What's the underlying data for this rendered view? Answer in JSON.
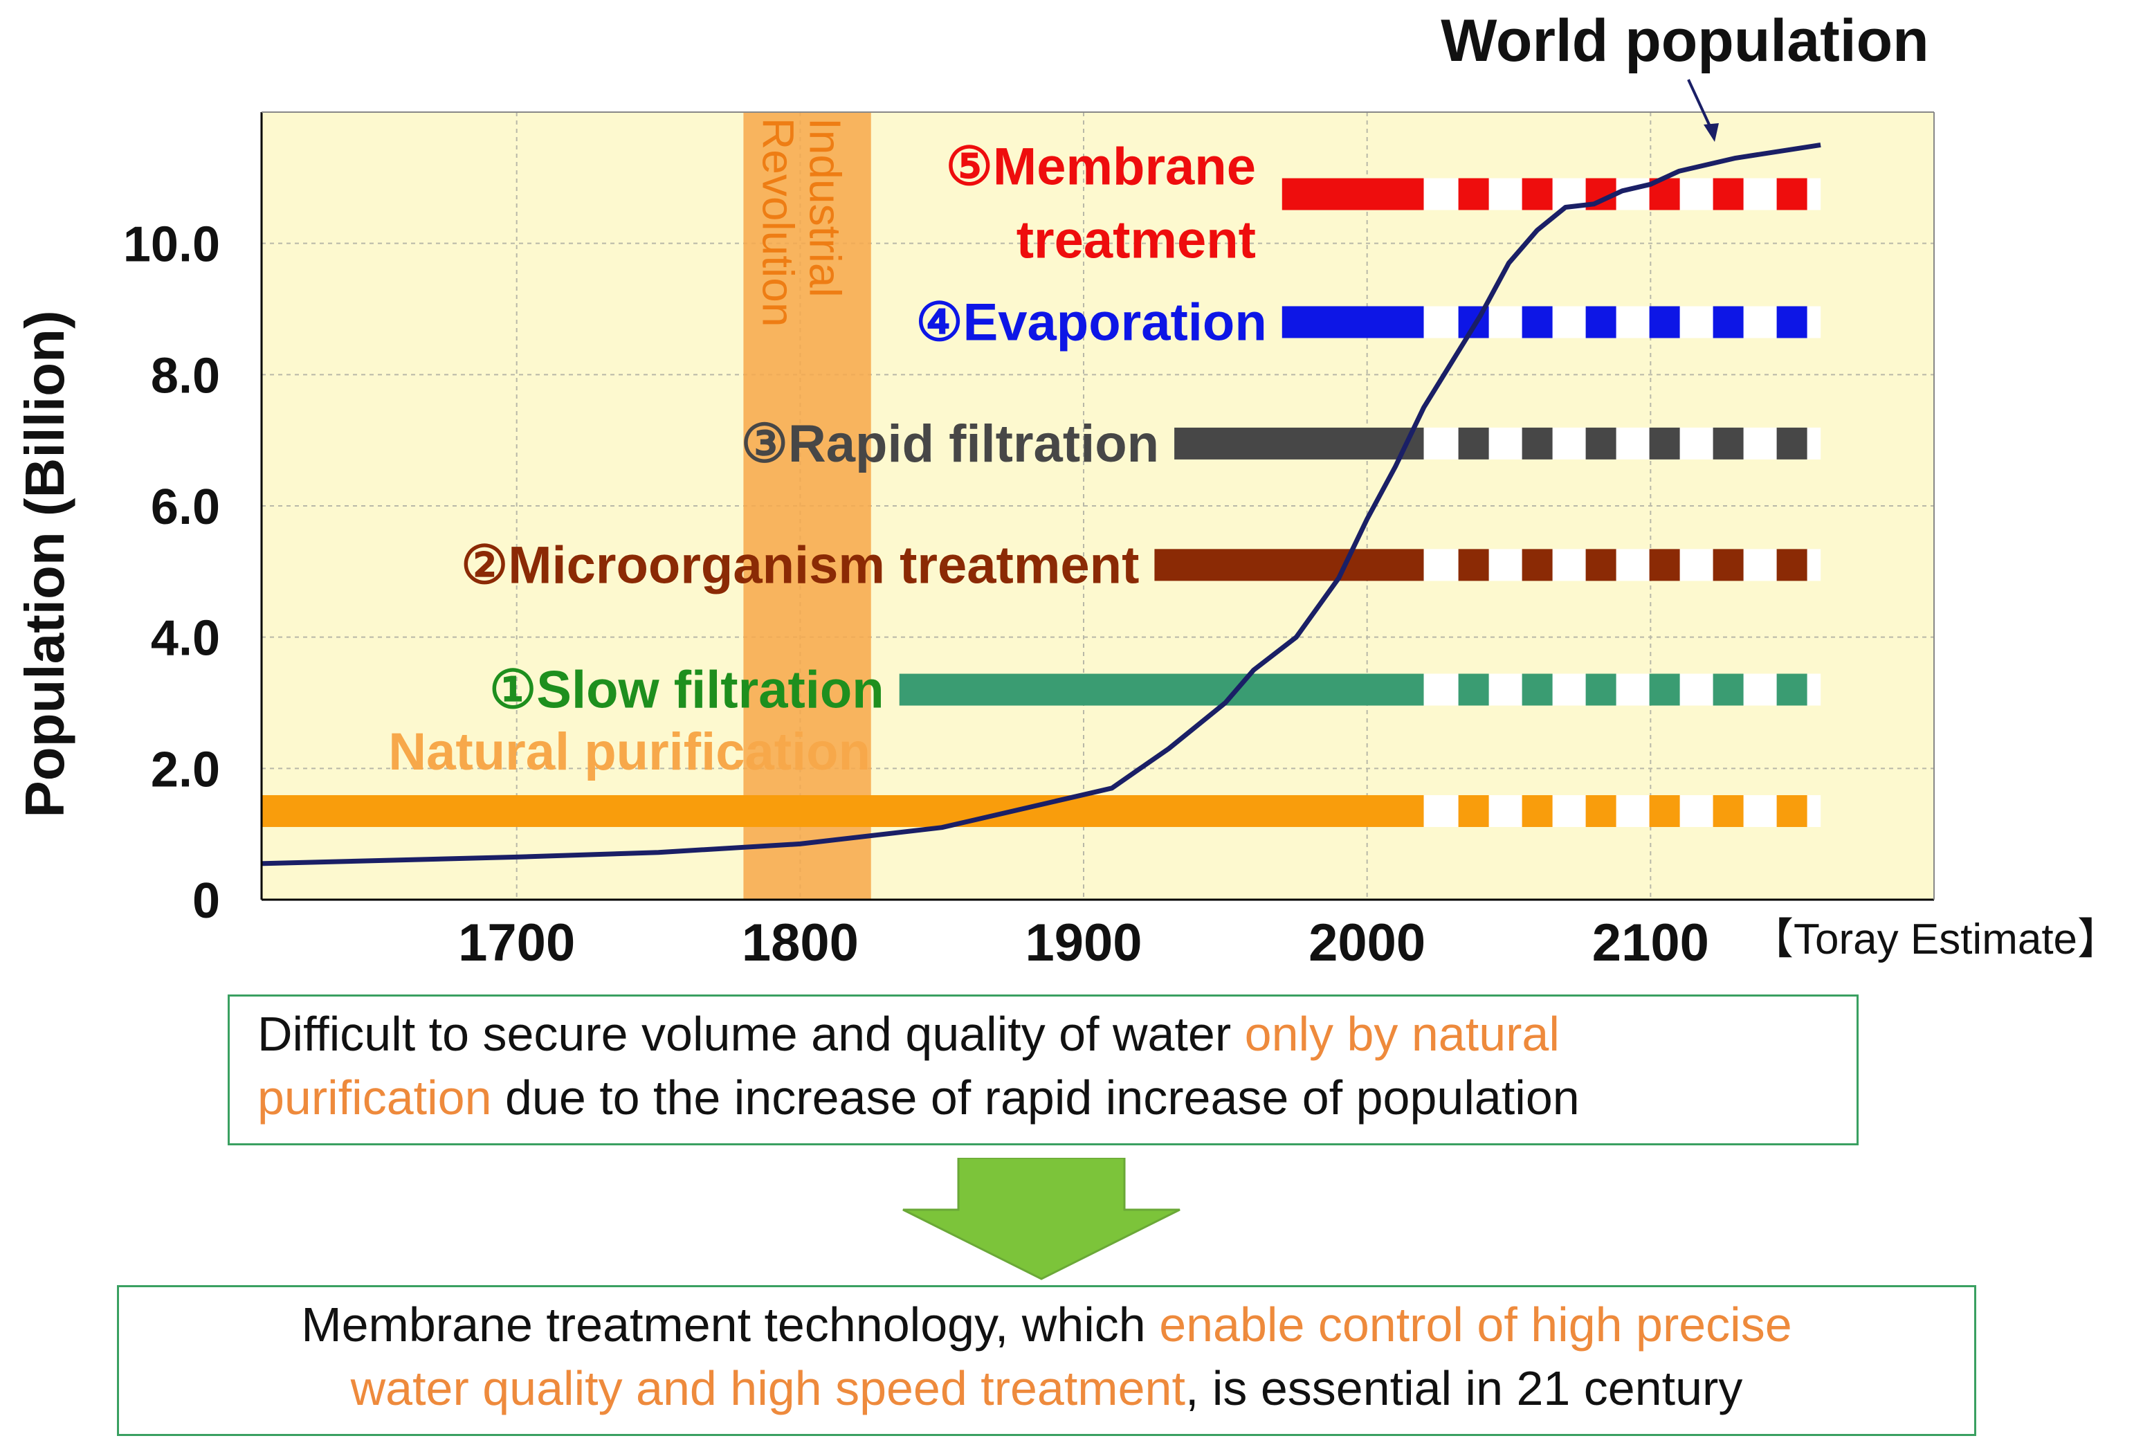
{
  "chart_data": {
    "type": "line",
    "title": "World population",
    "ylabel": "Population (Billion)",
    "xlabel": "",
    "xlim": [
      1610,
      2200
    ],
    "ylim": [
      0,
      12
    ],
    "x_ticks": [
      1700,
      1800,
      1900,
      2000,
      2100
    ],
    "y_ticks": [
      0,
      2,
      4,
      6,
      8,
      10
    ],
    "y_tick_labels": [
      "0",
      "2.0",
      "4.0",
      "6.0",
      "8.0",
      "10.0"
    ],
    "source_note": "【Toray Estimate】",
    "series": [
      {
        "name": "World population",
        "color": "#1a1f66",
        "x": [
          1610,
          1700,
          1750,
          1800,
          1850,
          1900,
          1910,
          1920,
          1930,
          1950,
          1960,
          1975,
          1990,
          2000,
          2010,
          2020,
          2030,
          2040,
          2050,
          2060,
          2070,
          2080,
          2090,
          2100,
          2110,
          2130,
          2160
        ],
        "values": [
          0.55,
          0.65,
          0.72,
          0.85,
          1.1,
          1.6,
          1.7,
          2.0,
          2.3,
          3.0,
          3.5,
          4.0,
          4.9,
          5.8,
          6.6,
          7.5,
          8.2,
          8.9,
          9.7,
          10.2,
          10.55,
          10.6,
          10.8,
          10.9,
          11.1,
          11.3,
          11.5
        ]
      }
    ],
    "band": {
      "label_line1": "Industrial",
      "label_line2": "Revolution",
      "x_start": 1780,
      "x_end": 1825,
      "color": "#f7a84a"
    },
    "technologies": [
      {
        "label": "Natural purification",
        "y": 1.35,
        "x_start": 1610,
        "solid_end": 2020,
        "dash_end": 2160,
        "color": "#f99d0c",
        "label_color": "#f7a84a"
      },
      {
        "label": "①Slow filtration",
        "y": 3.2,
        "x_start": 1835,
        "solid_end": 2020,
        "dash_end": 2160,
        "color": "#3a9c72",
        "label_color": "#1e8f1e"
      },
      {
        "label": "②Microorganism treatment",
        "y": 5.1,
        "x_start": 1925,
        "solid_end": 2020,
        "dash_end": 2160,
        "color": "#8b2a05",
        "label_color": "#8b2a05"
      },
      {
        "label": "③Rapid filtration",
        "y": 6.95,
        "x_start": 1932,
        "solid_end": 2020,
        "dash_end": 2160,
        "color": "#474747",
        "label_color": "#474747"
      },
      {
        "label": "④Evaporation",
        "y": 8.8,
        "x_start": 1970,
        "solid_end": 2020,
        "dash_end": 2160,
        "color": "#0d16e6",
        "label_color": "#0d16e6"
      },
      {
        "label_line1": "⑤Membrane",
        "label_line2": "treatment",
        "y": 10.75,
        "x_start": 1970,
        "solid_end": 2020,
        "dash_end": 2160,
        "color": "#ee0d0d",
        "label_color": "#ee0d0d"
      }
    ]
  },
  "colors": {
    "plot_background": "#fdf9cf",
    "grid": "#b8b8a8",
    "box_border": "#3aa061",
    "highlight_text": "#ee8a3c",
    "arrow": "#7cc43a"
  },
  "message1": {
    "part1": "Difficult to secure volume and quality of water ",
    "highlight1": "only by natural",
    "highlight2": "purification",
    "part2": " due to the increase of rapid increase of population"
  },
  "message2": {
    "part1": "Membrane treatment technology, which ",
    "highlight1": "enable control of  high precise",
    "highlight2": "water quality and high speed treatment",
    "part2": ", is essential in 21 century"
  }
}
